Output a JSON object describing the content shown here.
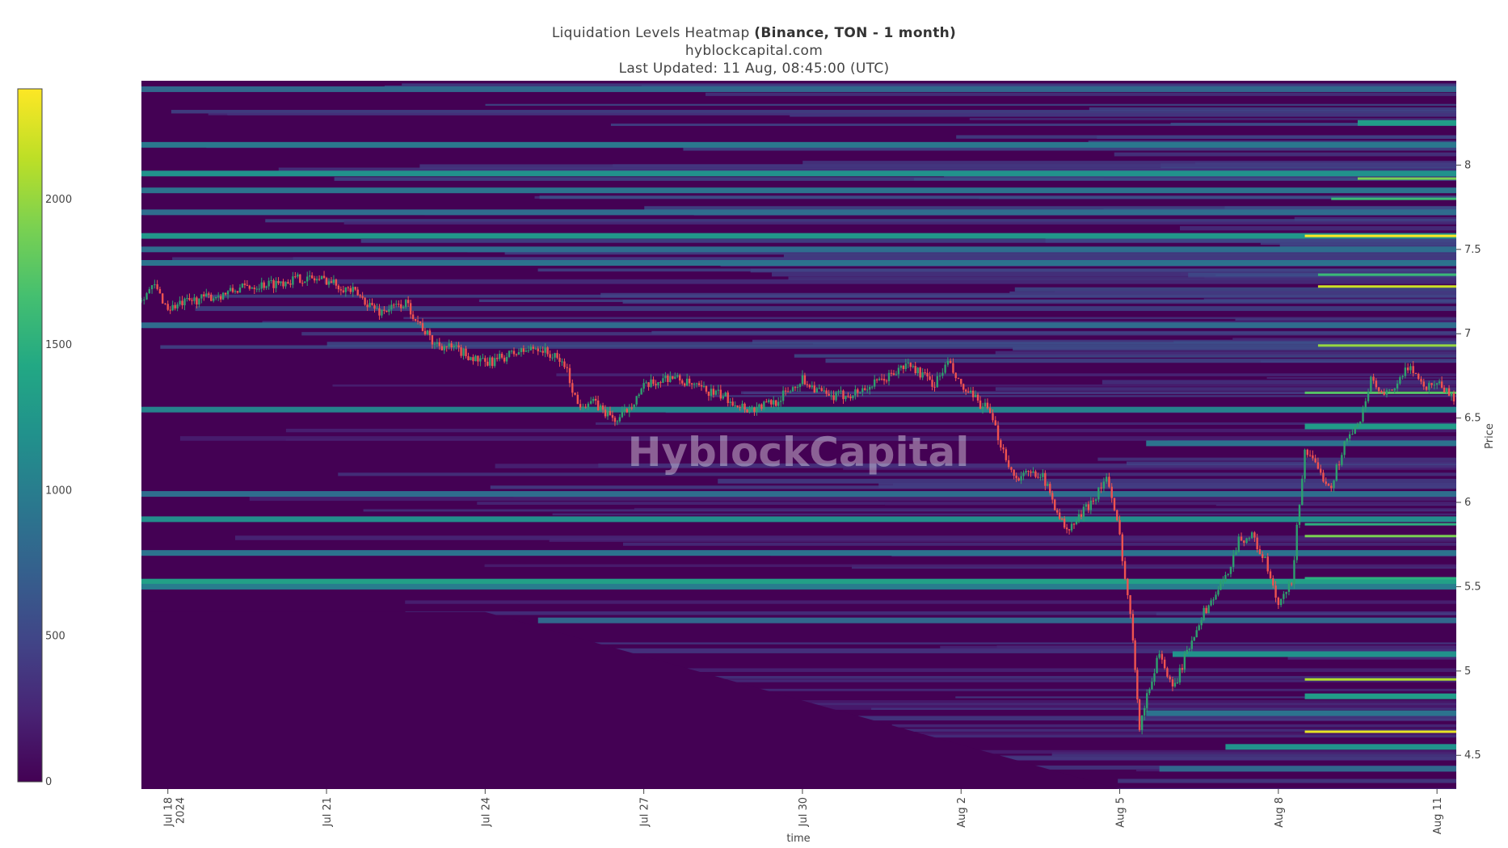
{
  "header": {
    "title_prefix": "Liquidation Levels Heatmap ",
    "title_bold": "(Binance, TON - 1 month)",
    "source": "hyblockcapital.com",
    "updated": "Last Updated: 11 Aug, 08:45:00 (UTC)"
  },
  "watermark": "HyblockCapital",
  "colors": {
    "viridis": [
      "#440154",
      "#482475",
      "#414487",
      "#355f8d",
      "#2a788e",
      "#21918c",
      "#22a884",
      "#44bf70",
      "#7ad151",
      "#bddf26",
      "#fde725"
    ],
    "candle_up": "#2e9f6e",
    "candle_down": "#ef5350"
  },
  "chart_data": {
    "type": "heatmap",
    "title": "Liquidation Levels Heatmap (Binance, TON - 1 month)",
    "xlabel": "time",
    "ylabel": "Price",
    "x_range": [
      "2024-07-17T12:00",
      "2024-08-11T08:45"
    ],
    "x_ticks": [
      {
        "date": "2024-07-18",
        "label": "Jul 18",
        "label2": "2024"
      },
      {
        "date": "2024-07-21",
        "label": "Jul 21"
      },
      {
        "date": "2024-07-24",
        "label": "Jul 24"
      },
      {
        "date": "2024-07-27",
        "label": "Jul 27"
      },
      {
        "date": "2024-07-30",
        "label": "Jul 30"
      },
      {
        "date": "2024-08-02",
        "label": "Aug 2"
      },
      {
        "date": "2024-08-05",
        "label": "Aug 5"
      },
      {
        "date": "2024-08-08",
        "label": "Aug 8"
      },
      {
        "date": "2024-08-11",
        "label": "Aug 11"
      }
    ],
    "y_range": [
      4.3,
      8.5
    ],
    "y_ticks": [
      "4.5",
      "5",
      "5.5",
      "6",
      "6.5",
      "7",
      "7.5",
      "8"
    ],
    "colorbar": {
      "min": 0,
      "max": 2380,
      "ticks": [
        "0",
        "500",
        "1000",
        "1500",
        "2000"
      ]
    },
    "price_series": [
      [
        "2024-07-17T12:00",
        7.22
      ],
      [
        "2024-07-17T18:00",
        7.28
      ],
      [
        "2024-07-18T00:00",
        7.15
      ],
      [
        "2024-07-18T12:00",
        7.2
      ],
      [
        "2024-07-19T00:00",
        7.23
      ],
      [
        "2024-07-19T12:00",
        7.28
      ],
      [
        "2024-07-20T00:00",
        7.3
      ],
      [
        "2024-07-20T12:00",
        7.33
      ],
      [
        "2024-07-21T00:00",
        7.32
      ],
      [
        "2024-07-21T12:00",
        7.25
      ],
      [
        "2024-07-22T00:00",
        7.13
      ],
      [
        "2024-07-22T12:00",
        7.18
      ],
      [
        "2024-07-23T00:00",
        6.95
      ],
      [
        "2024-07-23T12:00",
        6.9
      ],
      [
        "2024-07-24T00:00",
        6.82
      ],
      [
        "2024-07-24T12:00",
        6.88
      ],
      [
        "2024-07-25T00:00",
        6.92
      ],
      [
        "2024-07-25T12:00",
        6.82
      ],
      [
        "2024-07-25T18:00",
        6.58
      ],
      [
        "2024-07-26T00:00",
        6.6
      ],
      [
        "2024-07-26T12:00",
        6.48
      ],
      [
        "2024-07-27T00:00",
        6.68
      ],
      [
        "2024-07-27T12:00",
        6.75
      ],
      [
        "2024-07-28T00:00",
        6.68
      ],
      [
        "2024-07-28T12:00",
        6.63
      ],
      [
        "2024-07-29T00:00",
        6.55
      ],
      [
        "2024-07-29T12:00",
        6.6
      ],
      [
        "2024-07-30T00:00",
        6.73
      ],
      [
        "2024-07-30T12:00",
        6.62
      ],
      [
        "2024-07-31T00:00",
        6.65
      ],
      [
        "2024-07-31T12:00",
        6.72
      ],
      [
        "2024-08-01T00:00",
        6.82
      ],
      [
        "2024-08-01T12:00",
        6.7
      ],
      [
        "2024-08-01T18:00",
        6.83
      ],
      [
        "2024-08-02T00:00",
        6.68
      ],
      [
        "2024-08-02T12:00",
        6.55
      ],
      [
        "2024-08-02T18:00",
        6.35
      ],
      [
        "2024-08-03T00:00",
        6.15
      ],
      [
        "2024-08-03T12:00",
        6.18
      ],
      [
        "2024-08-04T00:00",
        5.82
      ],
      [
        "2024-08-04T12:00",
        6.02
      ],
      [
        "2024-08-04T18:00",
        6.15
      ],
      [
        "2024-08-05T00:00",
        5.8
      ],
      [
        "2024-08-05T06:00",
        5.2
      ],
      [
        "2024-08-05T09:00",
        4.68
      ],
      [
        "2024-08-05T18:00",
        5.12
      ],
      [
        "2024-08-06T00:00",
        4.88
      ],
      [
        "2024-08-06T12:00",
        5.3
      ],
      [
        "2024-08-07T00:00",
        5.55
      ],
      [
        "2024-08-07T06:00",
        5.78
      ],
      [
        "2024-08-07T12:00",
        5.8
      ],
      [
        "2024-08-07T18:00",
        5.65
      ],
      [
        "2024-08-08T00:00",
        5.38
      ],
      [
        "2024-08-08T06:00",
        5.52
      ],
      [
        "2024-08-08T12:00",
        6.32
      ],
      [
        "2024-08-08T18:00",
        6.18
      ],
      [
        "2024-08-09T00:00",
        6.1
      ],
      [
        "2024-08-09T06:00",
        6.35
      ],
      [
        "2024-08-09T12:00",
        6.45
      ],
      [
        "2024-08-09T18:00",
        6.72
      ],
      [
        "2024-08-10T00:00",
        6.62
      ],
      [
        "2024-08-10T06:00",
        6.7
      ],
      [
        "2024-08-10T12:00",
        6.82
      ],
      [
        "2024-08-10T18:00",
        6.68
      ],
      [
        "2024-08-11T00:00",
        6.72
      ],
      [
        "2024-08-11T08:45",
        6.6
      ]
    ],
    "bands": [
      {
        "price": 8.45,
        "start": "2024-07-17T12:00",
        "intensity": 800
      },
      {
        "price": 8.25,
        "start": "2024-08-09T12:00",
        "intensity": 1300
      },
      {
        "price": 8.12,
        "start": "2024-07-17T12:00",
        "intensity": 950
      },
      {
        "price": 7.95,
        "start": "2024-07-17T12:00",
        "intensity": 1200
      },
      {
        "price": 7.92,
        "start": "2024-08-09T12:00",
        "intensity": 1900
      },
      {
        "price": 7.85,
        "start": "2024-07-17T12:00",
        "intensity": 900
      },
      {
        "price": 7.8,
        "start": "2024-08-09T00:00",
        "intensity": 1600
      },
      {
        "price": 7.72,
        "start": "2024-07-17T12:00",
        "intensity": 850
      },
      {
        "price": 7.58,
        "start": "2024-07-17T12:00",
        "intensity": 1250
      },
      {
        "price": 7.58,
        "start": "2024-08-08T12:00",
        "intensity": 2380
      },
      {
        "price": 7.5,
        "start": "2024-07-17T12:00",
        "intensity": 850
      },
      {
        "price": 7.42,
        "start": "2024-07-17T12:00",
        "intensity": 900
      },
      {
        "price": 7.35,
        "start": "2024-08-08T18:00",
        "intensity": 1600
      },
      {
        "price": 7.28,
        "start": "2024-08-08T18:00",
        "intensity": 2200
      },
      {
        "price": 7.05,
        "start": "2024-07-17T12:00",
        "intensity": 850
      },
      {
        "price": 6.93,
        "start": "2024-08-08T18:00",
        "intensity": 2000
      },
      {
        "price": 6.65,
        "start": "2024-08-08T12:00",
        "intensity": 1750
      },
      {
        "price": 6.55,
        "start": "2024-07-17T12:00",
        "intensity": 1050
      },
      {
        "price": 6.45,
        "start": "2024-08-08T12:00",
        "intensity": 1300
      },
      {
        "price": 6.35,
        "start": "2024-08-05T12:00",
        "intensity": 900
      },
      {
        "price": 6.05,
        "start": "2024-07-17T12:00",
        "intensity": 850
      },
      {
        "price": 5.9,
        "start": "2024-07-17T12:00",
        "intensity": 1150
      },
      {
        "price": 5.87,
        "start": "2024-08-08T12:00",
        "intensity": 1500
      },
      {
        "price": 5.8,
        "start": "2024-08-08T12:00",
        "intensity": 1900
      },
      {
        "price": 5.7,
        "start": "2024-07-17T12:00",
        "intensity": 900
      },
      {
        "price": 5.53,
        "start": "2024-07-17T12:00",
        "intensity": 1350
      },
      {
        "price": 5.5,
        "start": "2024-07-17T12:00",
        "intensity": 1000
      },
      {
        "price": 5.55,
        "start": "2024-08-08T12:00",
        "intensity": 1500
      },
      {
        "price": 5.3,
        "start": "2024-07-25T00:00",
        "intensity": 800
      },
      {
        "price": 5.1,
        "start": "2024-08-06T00:00",
        "intensity": 1200
      },
      {
        "price": 4.95,
        "start": "2024-08-08T12:00",
        "intensity": 2100
      },
      {
        "price": 4.85,
        "start": "2024-08-08T12:00",
        "intensity": 1300
      },
      {
        "price": 4.75,
        "start": "2024-08-05T12:00",
        "intensity": 900
      },
      {
        "price": 4.64,
        "start": "2024-08-08T12:00",
        "intensity": 2300
      },
      {
        "price": 4.55,
        "start": "2024-08-07T00:00",
        "intensity": 1200
      },
      {
        "price": 4.42,
        "start": "2024-08-05T18:00",
        "intensity": 800
      }
    ]
  }
}
